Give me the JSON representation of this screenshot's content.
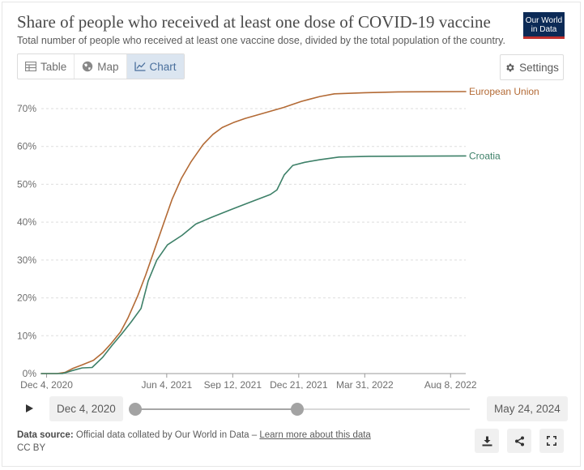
{
  "header": {
    "title": "Share of people who received at least one dose of COVID-19 vaccine",
    "subtitle": "Total number of people who received at least one vaccine dose, divided by the total population of the country.",
    "logo_line1": "Our World",
    "logo_line2": "in Data"
  },
  "tabs": [
    {
      "label": "Table",
      "icon": "table-icon"
    },
    {
      "label": "Map",
      "icon": "globe-icon"
    },
    {
      "label": "Chart",
      "icon": "line-chart-icon",
      "active": true
    }
  ],
  "settings_label": "Settings",
  "timeline": {
    "start_label": "Dec 4, 2020",
    "end_label": "May 24, 2024",
    "selected_range_fraction": [
      0,
      0.485
    ]
  },
  "footer": {
    "source_label": "Data source:",
    "source_text": "Official data collated by Our World in Data –",
    "learn_more": "Learn more about this data",
    "license": "CC BY"
  },
  "colors": {
    "eu": "#b36a35",
    "croatia": "#3d8068",
    "accent": "#4a6f9c"
  },
  "chart_data": {
    "type": "line",
    "title": "Share of people who received at least one dose of COVID-19 vaccine",
    "x_type": "date",
    "x_range": [
      "2020-11-26",
      "2022-08-31"
    ],
    "x_ticks": [
      {
        "date": "2020-12-04",
        "label": "Dec 4, 2020"
      },
      {
        "date": "2021-06-04",
        "label": "Jun 4, 2021"
      },
      {
        "date": "2021-09-12",
        "label": "Sep 12, 2021"
      },
      {
        "date": "2021-12-21",
        "label": "Dec 21, 2021"
      },
      {
        "date": "2022-03-31",
        "label": "Mar 31, 2022"
      },
      {
        "date": "2022-08-08",
        "label": "Aug 8, 2022"
      }
    ],
    "ylim": [
      0,
      70
    ],
    "y_ticks": [
      0,
      10,
      20,
      30,
      40,
      50,
      60,
      70
    ],
    "y_unit": "%",
    "series": [
      {
        "name": "European Union",
        "color_key": "eu",
        "points": [
          [
            "2020-11-26",
            0
          ],
          [
            "2020-12-20",
            0
          ],
          [
            "2021-01-01",
            0.3
          ],
          [
            "2021-01-12",
            1.3
          ],
          [
            "2021-01-27",
            2.3
          ],
          [
            "2021-02-13",
            3.5
          ],
          [
            "2021-02-27",
            5.5
          ],
          [
            "2021-03-11",
            7.8
          ],
          [
            "2021-03-26",
            11
          ],
          [
            "2021-04-06",
            14.6
          ],
          [
            "2021-04-21",
            20.5
          ],
          [
            "2021-05-03",
            26
          ],
          [
            "2021-05-17",
            33
          ],
          [
            "2021-05-31",
            40
          ],
          [
            "2021-06-12",
            46
          ],
          [
            "2021-06-26",
            51.5
          ],
          [
            "2021-07-11",
            56
          ],
          [
            "2021-07-29",
            60.5
          ],
          [
            "2021-08-13",
            63.2
          ],
          [
            "2021-08-27",
            65
          ],
          [
            "2021-09-13",
            66.3
          ],
          [
            "2021-10-01",
            67.4
          ],
          [
            "2021-10-29",
            68.8
          ],
          [
            "2021-11-28",
            70.3
          ],
          [
            "2021-12-25",
            71.9
          ],
          [
            "2022-01-22",
            73.2
          ],
          [
            "2022-02-13",
            73.9
          ],
          [
            "2022-03-31",
            74.2
          ],
          [
            "2022-05-20",
            74.4
          ],
          [
            "2022-08-31",
            74.5
          ]
        ],
        "label": "European Union"
      },
      {
        "name": "Croatia",
        "color_key": "croatia",
        "points": [
          [
            "2020-11-26",
            0
          ],
          [
            "2020-12-28",
            0
          ],
          [
            "2021-01-12",
            0.8
          ],
          [
            "2021-01-27",
            1.5
          ],
          [
            "2021-02-11",
            1.6
          ],
          [
            "2021-02-27",
            4.3
          ],
          [
            "2021-03-13",
            7.4
          ],
          [
            "2021-03-28",
            10.5
          ],
          [
            "2021-04-11",
            13.6
          ],
          [
            "2021-04-26",
            17.2
          ],
          [
            "2021-05-07",
            24.5
          ],
          [
            "2021-05-20",
            30
          ],
          [
            "2021-06-05",
            34
          ],
          [
            "2021-06-27",
            36.5
          ],
          [
            "2021-07-18",
            39.5
          ],
          [
            "2021-08-10",
            41.2
          ],
          [
            "2021-09-09",
            43.3
          ],
          [
            "2021-10-12",
            45.5
          ],
          [
            "2021-11-08",
            47.3
          ],
          [
            "2021-11-18",
            48.5
          ],
          [
            "2021-11-29",
            52.5
          ],
          [
            "2021-12-12",
            55
          ],
          [
            "2021-12-30",
            55.8
          ],
          [
            "2022-01-22",
            56.5
          ],
          [
            "2022-02-20",
            57.2
          ],
          [
            "2022-04-06",
            57.4
          ],
          [
            "2022-08-31",
            57.5
          ]
        ],
        "label": "Croatia"
      }
    ]
  }
}
